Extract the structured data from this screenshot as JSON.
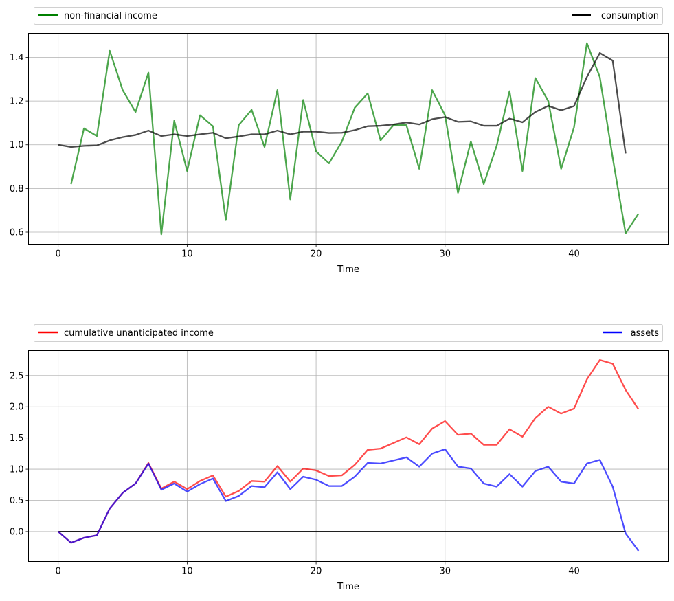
{
  "chart_data": [
    {
      "type": "line",
      "title": "",
      "xlabel": "Time",
      "ylabel": "",
      "xlim": [
        -2.3,
        47.3
      ],
      "ylim": [
        0.545,
        1.51
      ],
      "xticks": [
        0,
        10,
        20,
        30,
        40
      ],
      "yticks": [
        0.6,
        0.8,
        1.0,
        1.2,
        1.4
      ],
      "ytick_labels": [
        "0.6",
        "0.8",
        "1.0",
        "1.2",
        "1.4"
      ],
      "grid": true,
      "legend_position": "top, above plot (expanded)",
      "series": [
        {
          "name": "non-financial income",
          "color": "#008000",
          "x": [
            1,
            2,
            3,
            4,
            5,
            6,
            7,
            8,
            9,
            10,
            11,
            12,
            13,
            14,
            15,
            16,
            17,
            18,
            19,
            20,
            21,
            22,
            23,
            24,
            25,
            26,
            27,
            28,
            29,
            30,
            31,
            32,
            33,
            34,
            35,
            36,
            37,
            38,
            39,
            40,
            41,
            42,
            43,
            44,
            45
          ],
          "y": [
            0.82,
            1.075,
            1.04,
            1.43,
            1.25,
            1.15,
            1.33,
            0.59,
            1.11,
            0.88,
            1.135,
            1.085,
            0.655,
            1.09,
            1.16,
            0.99,
            1.25,
            0.75,
            1.205,
            0.97,
            0.915,
            1.015,
            1.17,
            1.235,
            1.02,
            1.09,
            1.09,
            0.89,
            1.25,
            1.135,
            0.78,
            1.015,
            0.82,
            0.995,
            1.245,
            0.88,
            1.305,
            1.2,
            0.89,
            1.08,
            1.465,
            1.31,
            0.94,
            0.595,
            0.685
          ]
        },
        {
          "name": "consumption",
          "color": "#000000",
          "x": [
            0,
            1,
            2,
            3,
            4,
            5,
            6,
            7,
            8,
            9,
            10,
            11,
            12,
            13,
            14,
            15,
            16,
            17,
            18,
            19,
            20,
            21,
            22,
            23,
            24,
            25,
            26,
            27,
            28,
            29,
            30,
            31,
            32,
            33,
            34,
            35,
            36,
            37,
            38,
            39,
            40,
            41,
            42,
            43,
            44
          ],
          "y": [
            1.0,
            0.99,
            0.995,
            0.997,
            1.02,
            1.035,
            1.045,
            1.065,
            1.04,
            1.048,
            1.04,
            1.048,
            1.055,
            1.03,
            1.038,
            1.048,
            1.048,
            1.065,
            1.048,
            1.06,
            1.06,
            1.054,
            1.055,
            1.067,
            1.085,
            1.087,
            1.093,
            1.102,
            1.093,
            1.117,
            1.127,
            1.105,
            1.107,
            1.087,
            1.087,
            1.12,
            1.103,
            1.15,
            1.178,
            1.158,
            1.177,
            1.31,
            1.42,
            1.385,
            0.96
          ]
        }
      ]
    },
    {
      "type": "line",
      "title": "",
      "xlabel": "Time",
      "ylabel": "",
      "xlim": [
        -2.3,
        47.3
      ],
      "ylim": [
        -0.48,
        2.9
      ],
      "xticks": [
        0,
        10,
        20,
        30,
        40
      ],
      "yticks": [
        0.0,
        0.5,
        1.0,
        1.5,
        2.0,
        2.5
      ],
      "ytick_labels": [
        "0.0",
        "0.5",
        "1.0",
        "1.5",
        "2.0",
        "2.5"
      ],
      "grid": true,
      "legend_position": "top, above plot (expanded)",
      "series": [
        {
          "name": "cumulative unanticipated income",
          "color": "#ff0000",
          "x": [
            0,
            1,
            2,
            3,
            4,
            5,
            6,
            7,
            8,
            9,
            10,
            11,
            12,
            13,
            14,
            15,
            16,
            17,
            18,
            19,
            20,
            21,
            22,
            23,
            24,
            25,
            26,
            27,
            28,
            29,
            30,
            31,
            32,
            33,
            34,
            35,
            36,
            37,
            38,
            39,
            40,
            41,
            42,
            43,
            44,
            45
          ],
          "y": [
            0.0,
            -0.18,
            -0.1,
            -0.06,
            0.37,
            0.62,
            0.77,
            1.1,
            0.69,
            0.8,
            0.68,
            0.81,
            0.9,
            0.56,
            0.65,
            0.81,
            0.8,
            1.05,
            0.8,
            1.01,
            0.98,
            0.89,
            0.9,
            1.07,
            1.31,
            1.33,
            1.42,
            1.51,
            1.4,
            1.65,
            1.77,
            1.55,
            1.57,
            1.39,
            1.39,
            1.64,
            1.52,
            1.82,
            2.0,
            1.89,
            1.97,
            2.44,
            2.75,
            2.69,
            2.27,
            1.96
          ]
        },
        {
          "name": "assets",
          "color": "#0000ff",
          "x": [
            0,
            1,
            2,
            3,
            4,
            5,
            6,
            7,
            8,
            9,
            10,
            11,
            12,
            13,
            14,
            15,
            16,
            17,
            18,
            19,
            20,
            21,
            22,
            23,
            24,
            25,
            26,
            27,
            28,
            29,
            30,
            31,
            32,
            33,
            34,
            35,
            36,
            37,
            38,
            39,
            40,
            41,
            42,
            43,
            44,
            45
          ],
          "y": [
            0.0,
            -0.18,
            -0.1,
            -0.06,
            0.37,
            0.62,
            0.77,
            1.09,
            0.67,
            0.77,
            0.64,
            0.76,
            0.85,
            0.49,
            0.57,
            0.73,
            0.71,
            0.95,
            0.68,
            0.88,
            0.83,
            0.73,
            0.73,
            0.88,
            1.1,
            1.09,
            1.14,
            1.19,
            1.04,
            1.25,
            1.32,
            1.04,
            1.01,
            0.77,
            0.72,
            0.92,
            0.72,
            0.97,
            1.04,
            0.8,
            0.77,
            1.09,
            1.15,
            0.72,
            -0.03,
            -0.31
          ]
        }
      ],
      "hline": {
        "y": 0,
        "x_range": [
          0,
          44
        ],
        "color": "#000000"
      }
    }
  ]
}
